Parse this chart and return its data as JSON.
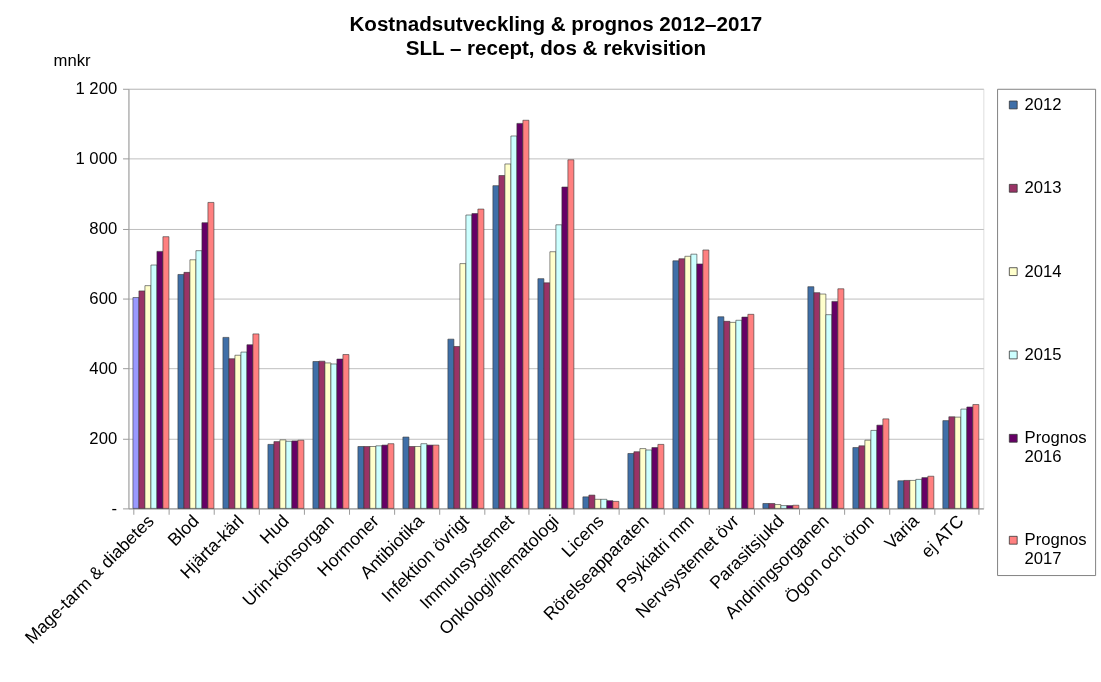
{
  "chart_data": {
    "type": "bar",
    "title": "Kostnadsutveckling & prognos 2012–2017",
    "subtitle": "SLL – recept, dos & rekvisition",
    "ylabel": "mnkr",
    "categories": [
      "Mage-tarm & diabetes",
      "Blod",
      "Hjärta-kärl",
      "Hud",
      "Urin-könsorgan",
      "Hormoner",
      "Antibiotika",
      "Infektion övrigt",
      "Immunsystemet",
      "Onkologi/hematologi",
      "Licens",
      "Rörelseapparaten",
      "Psykiatri mm",
      "Nervsystemet övr",
      "Parasitsjukd",
      "Andningsorganen",
      "Ögon och öron",
      "Varia",
      "ej ATC"
    ],
    "series": [
      {
        "name": "2012",
        "color": "#3f6fa8",
        "colors": [
          "#9999ff",
          "#3f6fa8",
          "#3f6fa8",
          "#3f6fa8",
          "#3f6fa8",
          "#3f6fa8",
          "#3f6fa8",
          "#3f6fa8",
          "#3f6fa8",
          "#3f6fa8",
          "#3f6fa8",
          "#3f6fa8",
          "#3f6fa8",
          "#3f6fa8",
          "#3f6fa8",
          "#3f6fa8",
          "#3f6fa8",
          "#3f6fa8",
          "#3f6fa8"
        ],
        "values": [
          603,
          669,
          489,
          183,
          420,
          177,
          204,
          484,
          923,
          657,
          33,
          157,
          708,
          548,
          14,
          634,
          174,
          79,
          251
        ]
      },
      {
        "name": "2013",
        "color": "#993366",
        "values": [
          622,
          675,
          428,
          191,
          421,
          177,
          177,
          463,
          952,
          645,
          38,
          162,
          714,
          535,
          14,
          617,
          179,
          80,
          262
        ]
      },
      {
        "name": "2014",
        "color": "#ffffcc",
        "values": [
          637,
          711,
          438,
          196,
          416,
          177,
          177,
          700,
          985,
          734,
          26,
          171,
          721,
          532,
          11,
          613,
          195,
          80,
          261
        ]
      },
      {
        "name": "2015",
        "color": "#ccffff",
        "values": [
          696,
          737,
          447,
          192,
          413,
          179,
          185,
          839,
          1065,
          811,
          26,
          167,
          727,
          538,
          8,
          554,
          223,
          83,
          284
        ]
      },
      {
        "name": "Prognos 2016",
        "color": "#660066",
        "values": [
          735,
          817,
          468,
          193,
          427,
          181,
          181,
          843,
          1101,
          919,
          22,
          174,
          699,
          547,
          8,
          592,
          238,
          88,
          290
        ]
      },
      {
        "name": "Prognos 2017",
        "color": "#ff8080",
        "values": [
          777,
          875,
          499,
          195,
          440,
          185,
          181,
          856,
          1110,
          997,
          20,
          183,
          739,
          555,
          9,
          628,
          256,
          92,
          297
        ]
      }
    ],
    "ylim": [
      0,
      1200
    ],
    "yticks": [
      {
        "value": 0,
        "label": "-"
      },
      200,
      400,
      600,
      800,
      {
        "value": 1000,
        "label": "1 000"
      },
      {
        "value": 1200,
        "label": "1 200"
      }
    ],
    "grid": "y",
    "legend": "right"
  }
}
